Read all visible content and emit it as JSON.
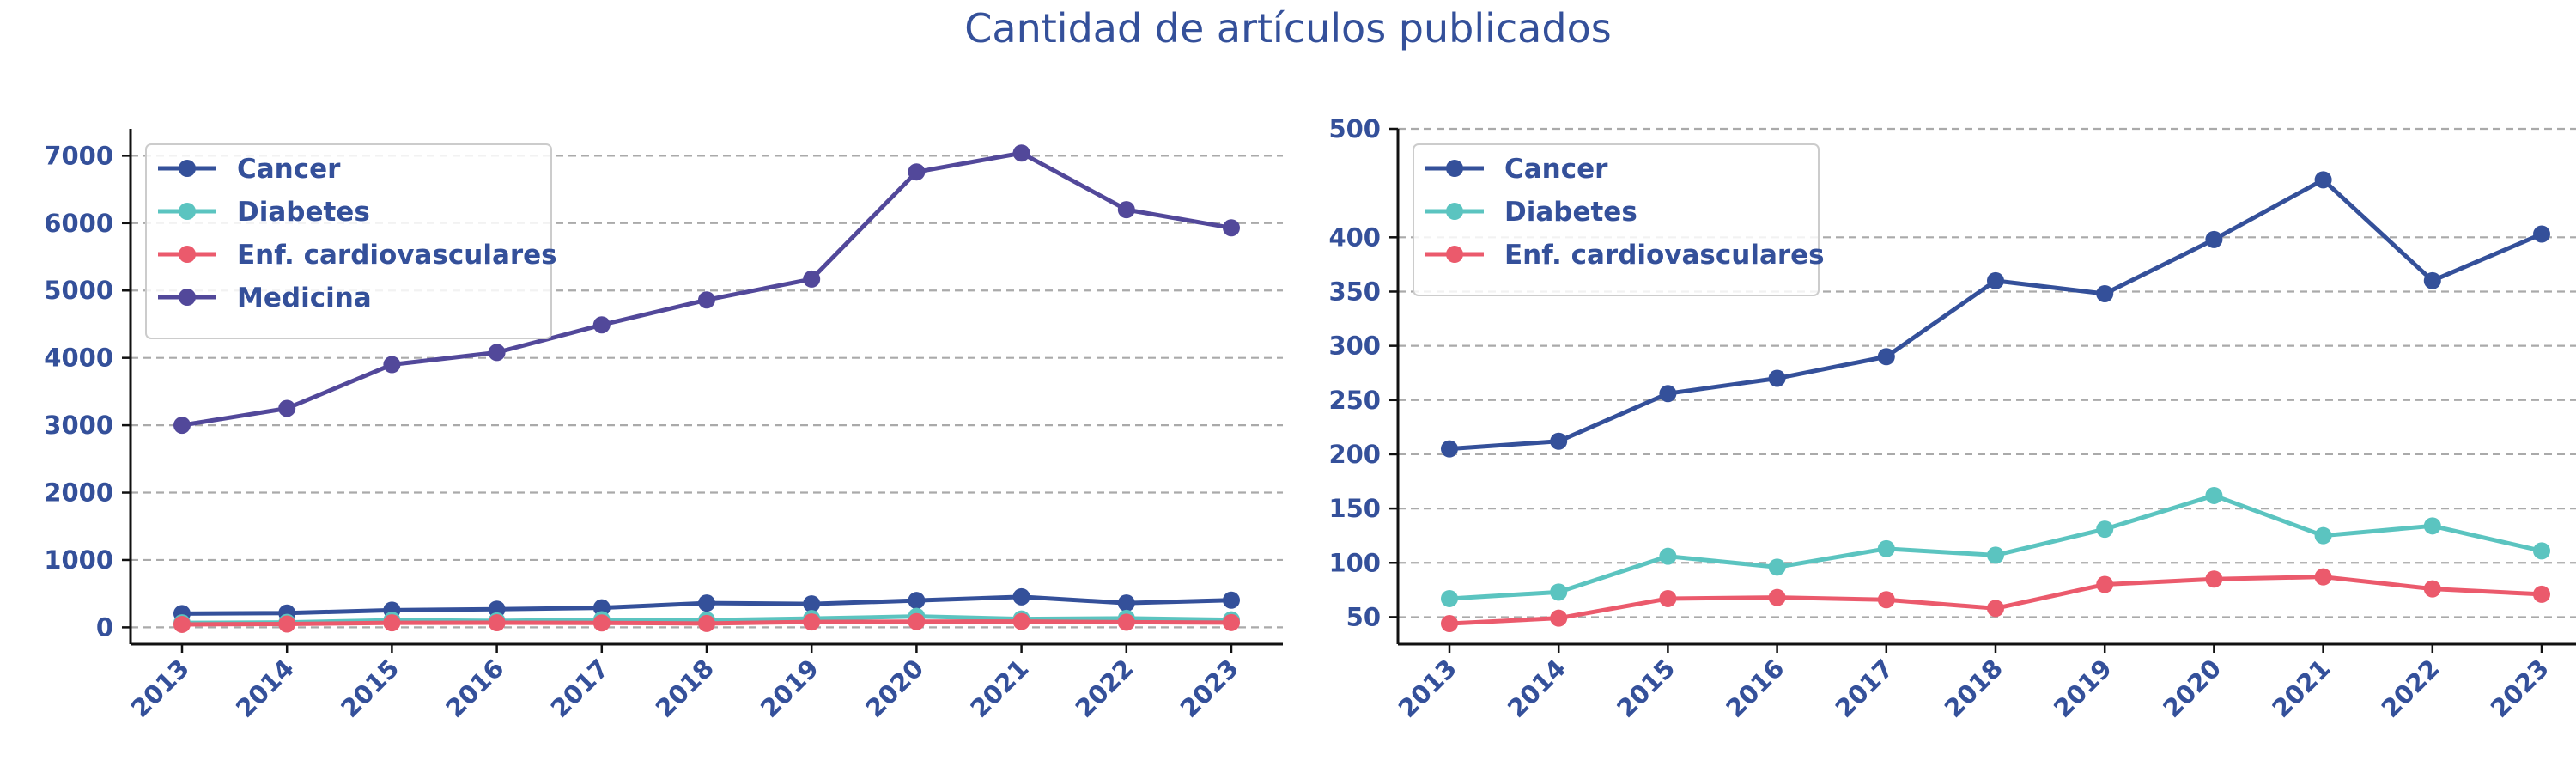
{
  "title": "Cantidad de artículos publicados",
  "colors": {
    "text": "#34509a",
    "grid": "#aaaaaa",
    "axis": "#111111",
    "Cancer": "#34509a",
    "Diabetes": "#5bc4c0",
    "Enf. cardiovasculares": "#eb5a6c",
    "Medicina": "#52489a"
  },
  "chart_data": [
    {
      "type": "line",
      "x": [
        "2013",
        "2014",
        "2015",
        "2016",
        "2017",
        "2018",
        "2019",
        "2020",
        "2021",
        "2022",
        "2023"
      ],
      "ylim": [
        -250,
        7400
      ],
      "yticks": [
        0,
        1000,
        2000,
        3000,
        4000,
        5000,
        6000,
        7000
      ],
      "grid": "horizontal-dashed",
      "legend_position": "top-left",
      "series": [
        {
          "name": "Cancer",
          "values": [
            205,
            212,
            256,
            270,
            290,
            360,
            348,
            398,
            453,
            360,
            403
          ]
        },
        {
          "name": "Diabetes",
          "values": [
            67,
            73,
            106,
            96,
            113,
            107,
            131,
            162,
            125,
            134,
            111
          ]
        },
        {
          "name": "Enf. cardiovasculares",
          "values": [
            44,
            49,
            67,
            68,
            66,
            58,
            80,
            85,
            87,
            76,
            71
          ]
        },
        {
          "name": "Medicina",
          "values": [
            3000,
            3250,
            3900,
            4080,
            4490,
            4860,
            5170,
            6760,
            7040,
            6200,
            5930
          ]
        }
      ]
    },
    {
      "type": "line",
      "x": [
        "2013",
        "2014",
        "2015",
        "2016",
        "2017",
        "2018",
        "2019",
        "2020",
        "2021",
        "2022",
        "2023"
      ],
      "ylim": [
        25,
        500
      ],
      "yticks": [
        50,
        100,
        150,
        200,
        250,
        300,
        350,
        400,
        500
      ],
      "grid": "horizontal-dashed",
      "legend_position": "top-left",
      "series": [
        {
          "name": "Cancer",
          "values": [
            205,
            212,
            256,
            270,
            290,
            360,
            348,
            398,
            453,
            360,
            403
          ]
        },
        {
          "name": "Diabetes",
          "values": [
            67,
            73,
            106,
            96,
            113,
            107,
            131,
            162,
            125,
            134,
            111
          ]
        },
        {
          "name": "Enf. cardiovasculares",
          "values": [
            44,
            49,
            67,
            68,
            66,
            58,
            80,
            85,
            87,
            76,
            71
          ]
        }
      ]
    }
  ]
}
